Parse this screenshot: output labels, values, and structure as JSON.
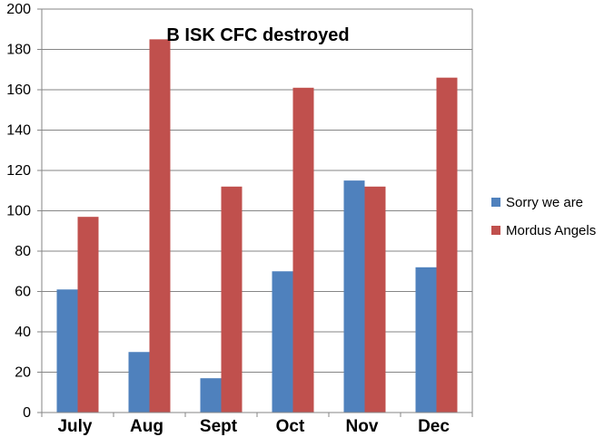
{
  "chart_data": {
    "type": "bar",
    "title": "B ISK CFC destroyed",
    "xlabel": "",
    "ylabel": "",
    "categories": [
      "July",
      "Aug",
      "Sept",
      "Oct",
      "Nov",
      "Dec"
    ],
    "series": [
      {
        "name": "Sorry we are",
        "color": "#4f81bd",
        "values": [
          61,
          30,
          17,
          70,
          115,
          72
        ]
      },
      {
        "name": "Mordus Angels",
        "color": "#c0504d",
        "values": [
          97,
          185,
          112,
          161,
          112,
          166
        ]
      }
    ],
    "ylim": [
      0,
      200
    ],
    "ytick_step": 20,
    "grid": true,
    "legend_position": "right"
  }
}
